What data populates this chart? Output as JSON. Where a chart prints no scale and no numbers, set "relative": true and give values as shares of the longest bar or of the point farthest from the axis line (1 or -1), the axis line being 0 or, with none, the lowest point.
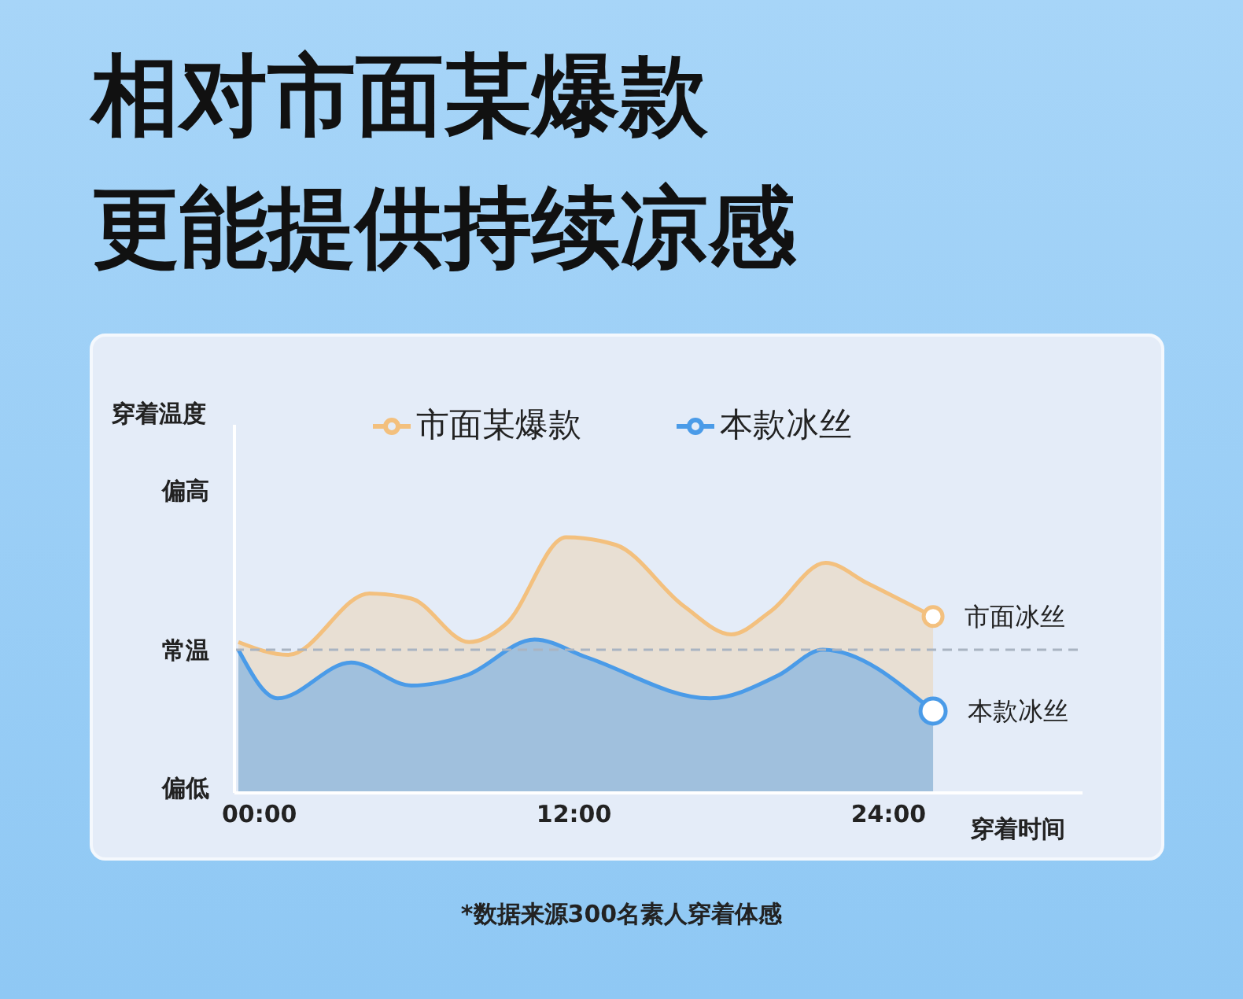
{
  "chart_data": {
    "type": "area",
    "title": "相对市面某爆款",
    "subtitle": "更能提供持续凉感",
    "ylabel": "穿着温度",
    "xlabel": "穿着时间",
    "relative": true,
    "xlim": [
      -0.95,
      31.4
    ],
    "xticks": [
      {
        "value": 0,
        "label": "00:00"
      },
      {
        "value": 12,
        "label": "12:00"
      },
      {
        "value": 24,
        "label": "24:00"
      }
    ],
    "series": [
      {
        "name": "市面某爆款",
        "color": "#f3c07e",
        "x": [
          -0.8,
          1.1,
          4.2,
          5.8,
          8.0,
          9.4,
          11.7,
          13.6,
          16.2,
          18.0,
          19.5,
          21.6,
          23.2,
          25.7
        ],
        "values": [
          0.59,
          0.54,
          0.78,
          0.76,
          0.59,
          0.66,
          1.0,
          0.97,
          0.73,
          0.62,
          0.71,
          0.9,
          0.82,
          0.69
        ]
      },
      {
        "name": "本款冰丝",
        "color": "#4a9be8",
        "x": [
          -0.8,
          0.7,
          3.5,
          5.8,
          7.9,
          10.5,
          12.5,
          17.2,
          19.8,
          21.5,
          25.7
        ],
        "values": [
          0.56,
          0.37,
          0.51,
          0.42,
          0.46,
          0.6,
          0.53,
          0.37,
          0.46,
          0.56,
          0.32
        ]
      }
    ],
    "ref_lines": [
      {
        "axis": "y",
        "value": 0.56,
        "label": "常温",
        "color": "#a9b4c2",
        "line_style": "dashed"
      }
    ],
    "annotations": [
      "偏高",
      "偏低",
      {
        "text": "市面冰丝",
        "x": 25.7,
        "y": 0.69
      },
      {
        "text": "本款冰丝",
        "x": 25.7,
        "y": 0.32
      },
      "*数据来源300名素人穿着体感"
    ],
    "legend": "top",
    "marker": "none",
    "line_style": "solid"
  }
}
